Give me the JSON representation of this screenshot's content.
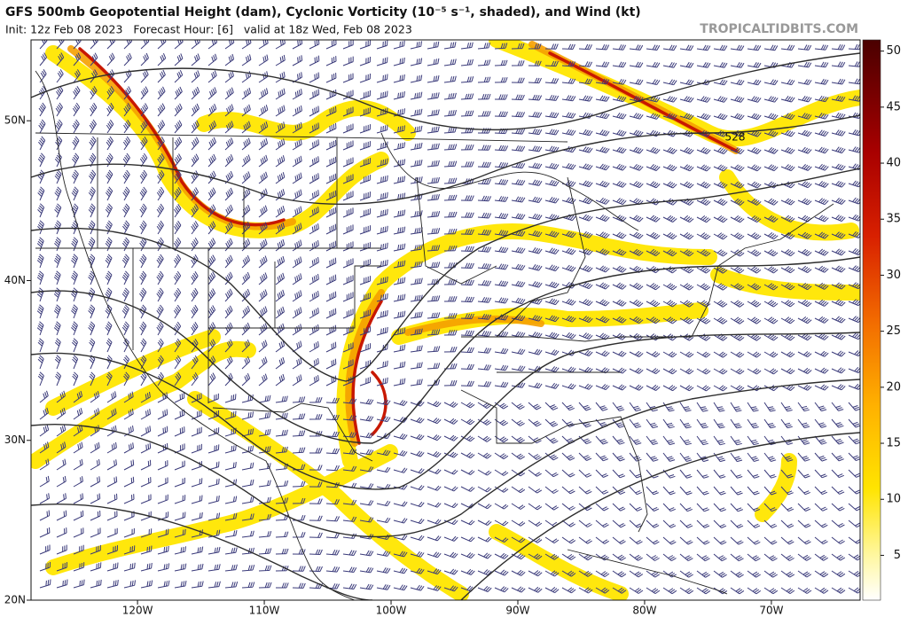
{
  "header": {
    "title": "GFS 500mb Geopotential Height (dam), Cyclonic Vorticity (10⁻⁵ s⁻¹, shaded), and Wind (kt)",
    "subtitle": "Init: 12z Feb 08 2023   Forecast Hour: [6]   valid at 18z Wed, Feb 08 2023",
    "watermark": "TROPICALTIDBITS.COM"
  },
  "map": {
    "lon_range": [
      -128.4,
      -63
    ],
    "lat_range": [
      20,
      55.06
    ],
    "lon_ticks": [
      {
        "value": -120,
        "label": "120W"
      },
      {
        "value": -110,
        "label": "110W"
      },
      {
        "value": -100,
        "label": "100W"
      },
      {
        "value": -90,
        "label": "90W"
      },
      {
        "value": -80,
        "label": "80W"
      },
      {
        "value": -70,
        "label": "70W"
      }
    ],
    "lat_ticks": [
      {
        "value": 20,
        "label": "20N"
      },
      {
        "value": 30,
        "label": "30N"
      },
      {
        "value": 40,
        "label": "40N"
      },
      {
        "value": 50,
        "label": "50N"
      }
    ],
    "contour_labels": [
      "528"
    ]
  },
  "colorbar": {
    "range": [
      1,
      51
    ],
    "ticks": [
      5,
      10,
      15,
      20,
      25,
      30,
      35,
      40,
      45,
      50
    ]
  }
}
